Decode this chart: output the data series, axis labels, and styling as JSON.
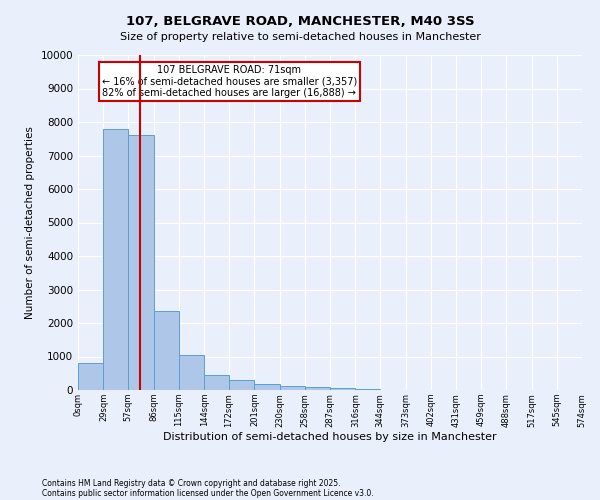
{
  "title": "107, BELGRAVE ROAD, MANCHESTER, M40 3SS",
  "subtitle": "Size of property relative to semi-detached houses in Manchester",
  "xlabel": "Distribution of semi-detached houses by size in Manchester",
  "ylabel": "Number of semi-detached properties",
  "property_label": "107 BELGRAVE ROAD: 71sqm",
  "pct_smaller": "16% of semi-detached houses are smaller (3,357)",
  "pct_larger": "82% of semi-detached houses are larger (16,888)",
  "property_size_sqm": 71,
  "bin_edges": [
    0,
    29,
    57,
    86,
    115,
    144,
    172,
    201,
    230,
    258,
    287,
    316,
    344,
    373,
    402,
    431,
    459,
    488,
    517,
    545,
    574
  ],
  "bar_heights": [
    800,
    7800,
    7600,
    2350,
    1050,
    450,
    290,
    185,
    115,
    100,
    60,
    20,
    10,
    5,
    3,
    2,
    1,
    1,
    0,
    0
  ],
  "bar_color": "#aec6e8",
  "bar_edge_color": "#5a9fd4",
  "vline_color": "#cc0000",
  "vline_x": 71,
  "ylim": [
    0,
    10000
  ],
  "yticks": [
    0,
    1000,
    2000,
    3000,
    4000,
    5000,
    6000,
    7000,
    8000,
    9000,
    10000
  ],
  "background_color": "#eaf0fb",
  "plot_bg_color": "#eaf0fb",
  "grid_color": "#ffffff",
  "annotation_box_color": "#cc0000",
  "footnote1": "Contains HM Land Registry data © Crown copyright and database right 2025.",
  "footnote2": "Contains public sector information licensed under the Open Government Licence v3.0."
}
